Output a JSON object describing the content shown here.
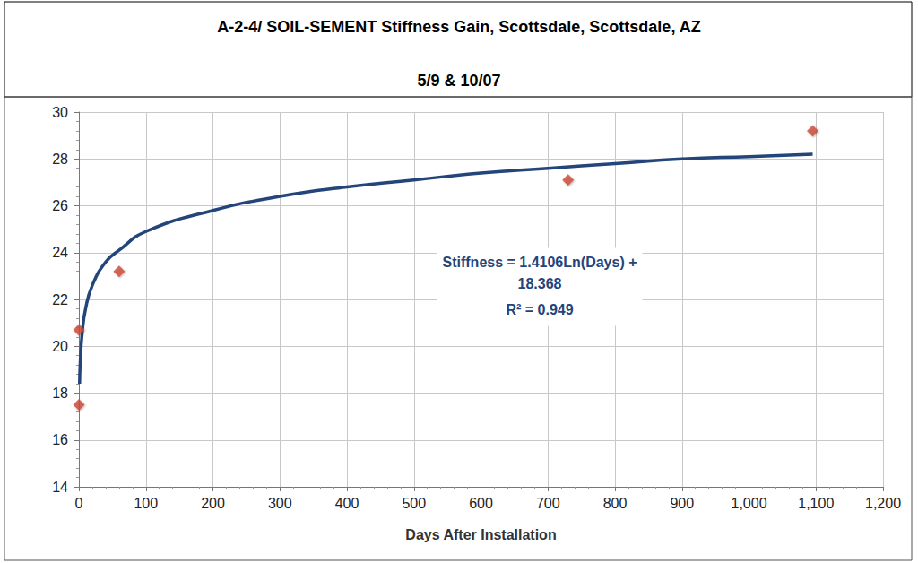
{
  "chart_data": {
    "type": "scatter",
    "title": "A-2-4/ SOIL-SEMENT Stiffness Gain, Scottsdale, Scottsdale, AZ",
    "subtitle": "5/9 & 10/07",
    "x_label": "Days After Installation",
    "annotation": [
      "Stiffness = 1.4106Ln(Days) +",
      "18.368",
      "R² = 0.949"
    ],
    "xlim": [
      0,
      1200
    ],
    "xticks": [
      0,
      100,
      200,
      300,
      400,
      500,
      600,
      700,
      800,
      900,
      1000,
      1100,
      1200
    ],
    "ylim": [
      14,
      30
    ],
    "yticks": [
      14,
      16,
      18,
      20,
      22,
      24,
      26,
      28,
      30
    ],
    "grid": true,
    "series": [
      {
        "type": "scatter",
        "color": "#d04a3a",
        "marker": "diamond",
        "x": [
          0,
          0,
          60,
          730,
          1095
        ],
        "values": [
          17.5,
          20.7,
          23.2,
          27.1,
          29.2
        ]
      },
      {
        "type": "line",
        "color": "#23457a",
        "line_style": "solid",
        "marker": "none",
        "x": [
          1,
          2,
          5,
          10,
          20,
          40,
          60,
          100,
          200,
          300,
          400,
          500,
          600,
          700,
          800,
          900,
          1000,
          1095
        ],
        "values": [
          18.4,
          19.3,
          20.6,
          21.6,
          22.6,
          23.6,
          24.1,
          24.9,
          25.8,
          26.4,
          26.8,
          27.1,
          27.4,
          27.6,
          27.8,
          28.0,
          28.1,
          28.2
        ]
      }
    ]
  }
}
